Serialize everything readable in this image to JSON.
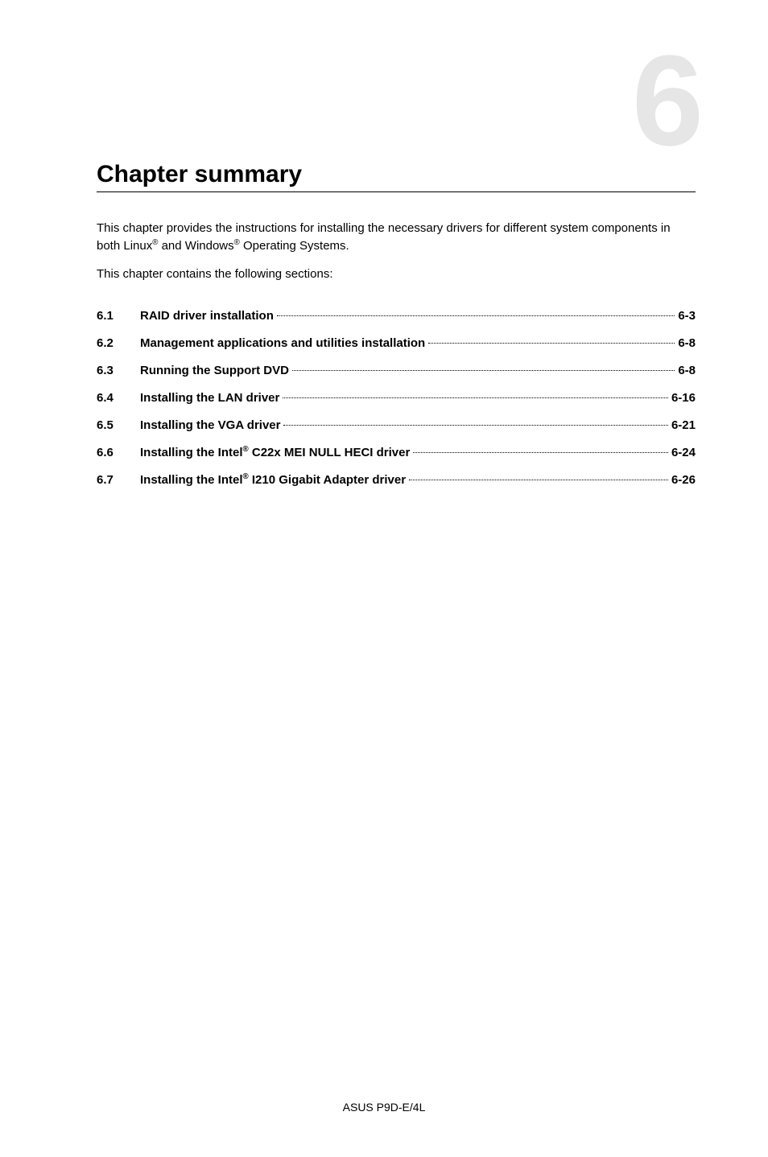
{
  "chapter_number_glyph": "6",
  "chapter_title": "Chapter summary",
  "intro_line1_a": "This chapter provides the instructions for installing the necessary drivers for different system components in both Linux",
  "intro_line1_b": " and Windows",
  "intro_line1_c": " Operating Systems.",
  "intro_line2": "This chapter contains the following sections:",
  "toc": [
    {
      "num": "6.1",
      "title_parts": [
        {
          "t": "RAID driver installation"
        }
      ],
      "page": "6-3"
    },
    {
      "num": "6.2",
      "title_parts": [
        {
          "t": "Management applications and utilities installation"
        }
      ],
      "page": "6-8"
    },
    {
      "num": "6.3",
      "title_parts": [
        {
          "t": "Running the Support DVD"
        }
      ],
      "page": "6-8"
    },
    {
      "num": "6.4",
      "title_parts": [
        {
          "t": "Installing the LAN driver"
        }
      ],
      "page": "6-16"
    },
    {
      "num": "6.5",
      "title_parts": [
        {
          "t": "Installing the VGA driver"
        }
      ],
      "page": "6-21"
    },
    {
      "num": "6.6",
      "title_parts": [
        {
          "t": "Installing the Intel"
        },
        {
          "sup": "®"
        },
        {
          "t": " C22x MEI NULL HECI driver"
        }
      ],
      "page": "6-24"
    },
    {
      "num": "6.7",
      "title_parts": [
        {
          "t": "Installing the Intel"
        },
        {
          "sup": "®"
        },
        {
          "t": " I210 Gigabit Adapter driver"
        }
      ],
      "page": "6-26"
    }
  ],
  "footer": "ASUS P9D-E/4L",
  "reg_mark": "®",
  "colors": {
    "text": "#000000",
    "background": "#ffffff",
    "big_number": "#e6e6e6",
    "rule": "#000000"
  },
  "fonts": {
    "title_size_pt": 22,
    "body_size_pt": 11,
    "big_number_size_pt": 120
  }
}
